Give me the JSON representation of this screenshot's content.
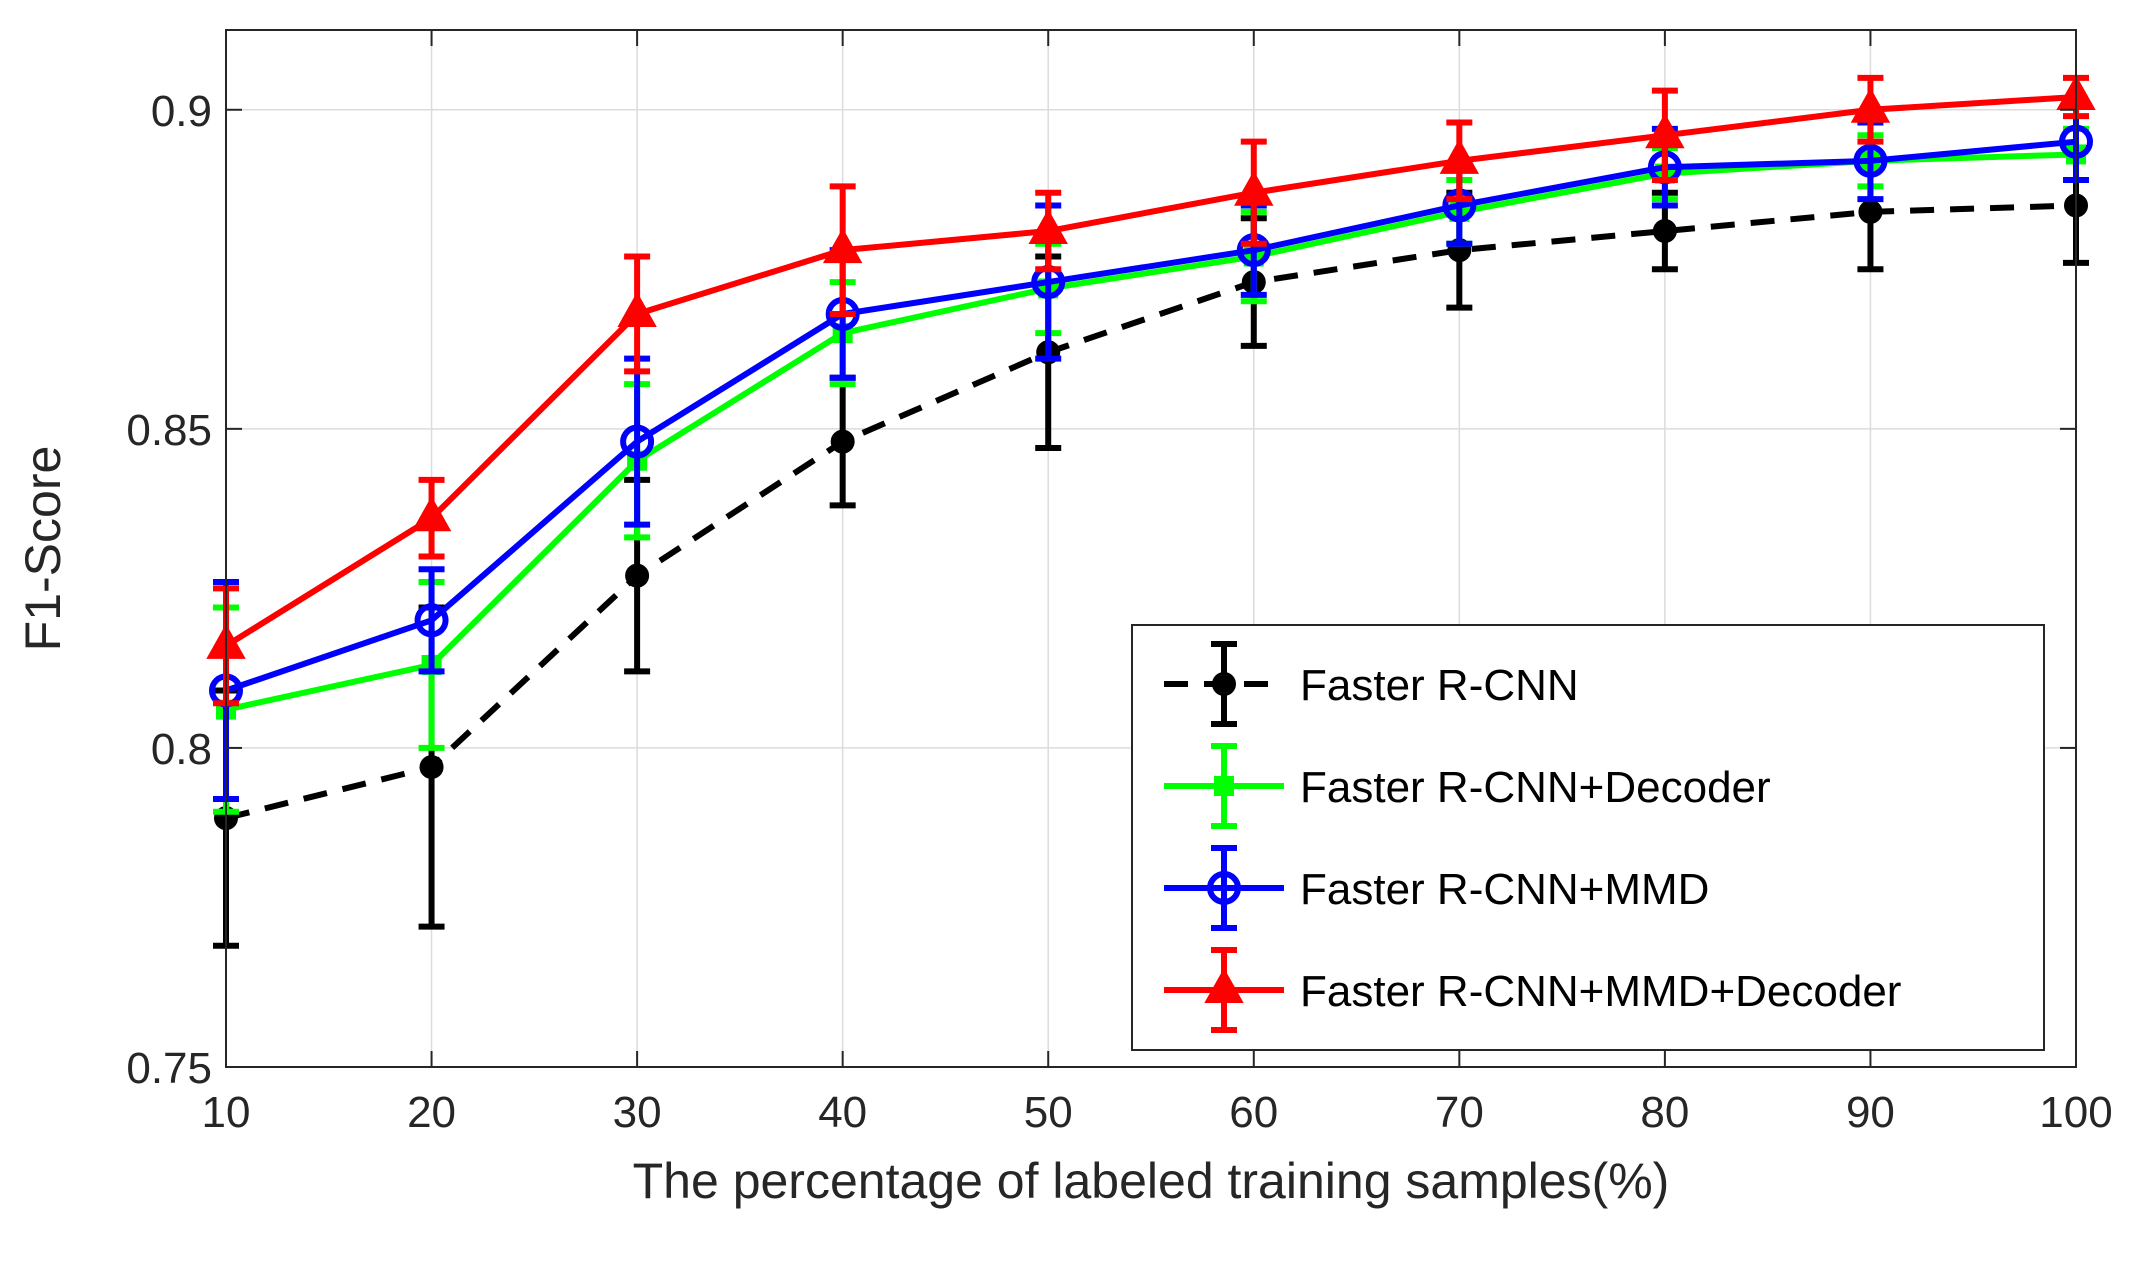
{
  "chart_data": {
    "type": "line",
    "title": "",
    "xlabel": "The percentage of labeled training samples(%)",
    "ylabel": "F1-Score",
    "x": [
      10,
      20,
      30,
      40,
      50,
      60,
      70,
      80,
      90,
      100
    ],
    "xlim": [
      10,
      100
    ],
    "ylim": [
      0.75,
      0.9125
    ],
    "xticks": [
      "10",
      "20",
      "30",
      "40",
      "50",
      "60",
      "70",
      "80",
      "90",
      "100"
    ],
    "yticks": [
      "0.75",
      "0.8",
      "0.85",
      "0.9"
    ],
    "grid": true,
    "legend_position": "bottom-right",
    "series": [
      {
        "name": "Faster R-CNN",
        "color": "#000000",
        "line_style": "dashed",
        "marker": "circle-filled",
        "values": [
          0.789,
          0.797,
          0.827,
          0.848,
          0.862,
          0.873,
          0.878,
          0.881,
          0.884,
          0.885
        ],
        "errors": [
          0.02,
          0.025,
          0.015,
          0.01,
          0.015,
          0.01,
          0.009,
          0.006,
          0.009,
          0.009
        ]
      },
      {
        "name": "Faster R-CNN+Decoder",
        "color": "#00ff00",
        "line_style": "solid",
        "marker": "square-filled",
        "values": [
          0.806,
          0.813,
          0.845,
          0.865,
          0.872,
          0.877,
          0.884,
          0.89,
          0.892,
          0.893
        ],
        "errors": [
          0.016,
          0.013,
          0.012,
          0.008,
          0.007,
          0.007,
          0.005,
          0.004,
          0.004,
          0.004
        ]
      },
      {
        "name": "Faster R-CNN+MMD",
        "color": "#0000ff",
        "line_style": "solid",
        "marker": "circle-open",
        "values": [
          0.809,
          0.82,
          0.848,
          0.868,
          0.873,
          0.878,
          0.885,
          0.891,
          0.892,
          0.895
        ],
        "errors": [
          0.017,
          0.008,
          0.013,
          0.01,
          0.012,
          0.007,
          0.006,
          0.006,
          0.006,
          0.006
        ]
      },
      {
        "name": "Faster R-CNN+MMD+Decoder",
        "color": "#ff0000",
        "line_style": "solid",
        "marker": "triangle-filled",
        "values": [
          0.816,
          0.836,
          0.868,
          0.878,
          0.881,
          0.887,
          0.892,
          0.896,
          0.9,
          0.902
        ],
        "errors": [
          0.009,
          0.006,
          0.009,
          0.01,
          0.006,
          0.008,
          0.006,
          0.007,
          0.005,
          0.003
        ]
      }
    ]
  }
}
